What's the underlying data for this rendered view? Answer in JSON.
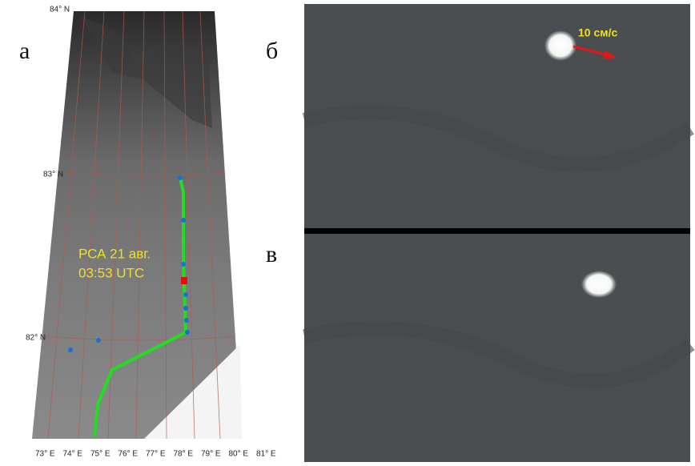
{
  "panel_a": {
    "label": "а",
    "lat_labels": [
      "84° N",
      "83° N",
      "82° N"
    ],
    "lon_labels": [
      "73° E",
      "74° E",
      "75° E",
      "76° E",
      "77° E",
      "78° E",
      "79° E",
      "80° E",
      "81° E"
    ],
    "annotation": [
      "РСА 21 авг.",
      "03:53 UTC"
    ]
  },
  "panel_b": {
    "label": "б",
    "speed_label": "10 см/с"
  },
  "panel_v": {
    "label": "в"
  }
}
